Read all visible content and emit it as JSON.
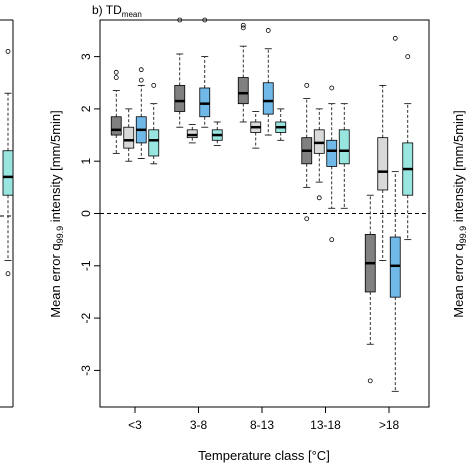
{
  "chart_data": {
    "type": "boxplot",
    "title": "b) TD",
    "title_subscript": "mean",
    "xlabel": "Temperature class [°C]",
    "ylabel_main": "Mean error q",
    "ylabel_sub": "99.9",
    "ylabel_rest": " intensity [mm/5min]",
    "ylim": [
      -3.7,
      3.7
    ],
    "yticks": [
      3,
      2,
      1,
      0,
      -1,
      -2,
      -3
    ],
    "ytick_labels": [
      "3",
      "2",
      "1",
      "0",
      "-1",
      "-2",
      "-3"
    ],
    "reference_line": 0,
    "categories": [
      "<3",
      "3-8",
      "8-13",
      "13-18",
      ">18"
    ],
    "series_colors": [
      "#808080",
      "#d9d9d9",
      "#6fb8e8",
      "#99e6e0"
    ],
    "boxes": [
      [
        {
          "lo": 1.15,
          "q1": 1.5,
          "med": 1.6,
          "q3": 1.85,
          "hi": 2.35,
          "out": [
            2.6,
            2.7
          ]
        },
        {
          "lo": 1.0,
          "q1": 1.25,
          "med": 1.4,
          "q3": 1.65,
          "hi": 2.0,
          "out": []
        },
        {
          "lo": 1.05,
          "q1": 1.35,
          "med": 1.6,
          "q3": 1.85,
          "hi": 2.45,
          "out": [
            2.75,
            2.55
          ]
        },
        {
          "lo": 0.95,
          "q1": 1.1,
          "med": 1.4,
          "q3": 1.6,
          "hi": 2.1,
          "out": [
            2.45
          ]
        }
      ],
      [
        {
          "lo": 1.65,
          "q1": 1.95,
          "med": 2.15,
          "q3": 2.45,
          "hi": 3.05,
          "out": [
            3.7
          ]
        },
        {
          "lo": 1.35,
          "q1": 1.45,
          "med": 1.5,
          "q3": 1.6,
          "hi": 1.7,
          "out": []
        },
        {
          "lo": 1.65,
          "q1": 1.85,
          "med": 2.1,
          "q3": 2.4,
          "hi": 3.0,
          "out": [
            3.7
          ]
        },
        {
          "lo": 1.3,
          "q1": 1.4,
          "med": 1.5,
          "q3": 1.6,
          "hi": 1.75,
          "out": []
        }
      ],
      [
        {
          "lo": 1.75,
          "q1": 2.1,
          "med": 2.3,
          "q3": 2.6,
          "hi": 3.2,
          "out": [
            3.6,
            3.55
          ]
        },
        {
          "lo": 1.25,
          "q1": 1.55,
          "med": 1.65,
          "q3": 1.75,
          "hi": 1.95,
          "out": []
        },
        {
          "lo": 1.5,
          "q1": 1.9,
          "med": 2.15,
          "q3": 2.5,
          "hi": 3.15,
          "out": [
            3.5
          ]
        },
        {
          "lo": 1.4,
          "q1": 1.55,
          "med": 1.65,
          "q3": 1.75,
          "hi": 2.0,
          "out": []
        }
      ],
      [
        {
          "lo": 0.5,
          "q1": 0.95,
          "med": 1.2,
          "q3": 1.45,
          "hi": 2.2,
          "out": [
            2.45,
            -0.1
          ]
        },
        {
          "lo": 0.6,
          "q1": 1.15,
          "med": 1.35,
          "q3": 1.6,
          "hi": 2.0,
          "out": [
            0.3
          ]
        },
        {
          "lo": 0.1,
          "q1": 0.9,
          "med": 1.2,
          "q3": 1.4,
          "hi": 2.1,
          "out": [
            2.4,
            -0.5
          ]
        },
        {
          "lo": 0.1,
          "q1": 0.95,
          "med": 1.2,
          "q3": 1.6,
          "hi": 2.1,
          "out": []
        }
      ],
      [
        {
          "lo": -2.5,
          "q1": -1.5,
          "med": -0.95,
          "q3": -0.4,
          "hi": 0.35,
          "out": [
            -3.2
          ]
        },
        {
          "lo": -0.9,
          "q1": 0.45,
          "med": 0.8,
          "q3": 1.45,
          "hi": 2.45,
          "out": []
        },
        {
          "lo": -3.4,
          "q1": -1.6,
          "med": -1.0,
          "q3": -0.45,
          "hi": 0.8,
          "out": [
            3.35
          ]
        },
        {
          "lo": -0.5,
          "q1": 0.35,
          "med": 0.85,
          "q3": 1.35,
          "hi": 2.1,
          "out": [
            3.0
          ]
        }
      ]
    ],
    "left_panel_partial": {
      "box": {
        "lo": -0.9,
        "q1": 0.35,
        "med": 0.7,
        "q3": 1.2,
        "hi": 2.3,
        "out": [
          3.1,
          -1.15
        ]
      },
      "color": "#99e6e0"
    },
    "right_panel_partial": {
      "ylabel_main": "Mean error q",
      "ylabel_sub": "99.9",
      "ylabel_rest": " intensity [mm/5min]"
    }
  }
}
